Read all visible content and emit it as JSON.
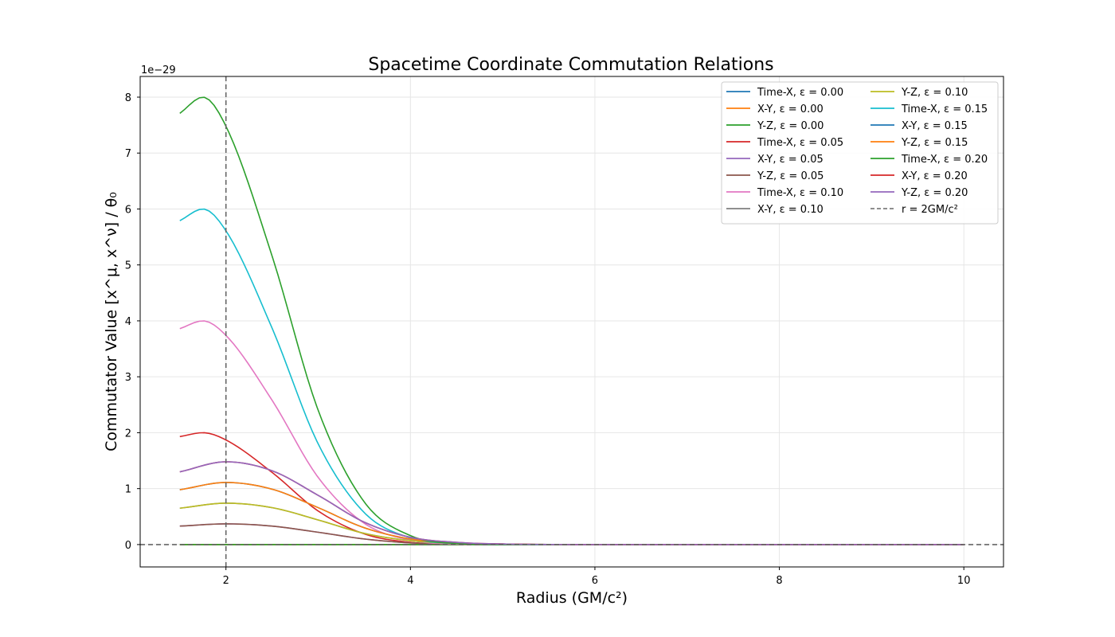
{
  "chart_data": {
    "type": "line",
    "title": "Spacetime Coordinate Commutation Relations",
    "xlabel": "Radius (GM/c²)",
    "ylabel": "Commutator Value [x^μ, x^ν] / θ₀",
    "y_offset_label": "1e−29",
    "xlim": [
      1.07,
      10.43
    ],
    "ylim": [
      -0.4,
      8.37
    ],
    "x_ticks": [
      2,
      4,
      6,
      8,
      10
    ],
    "y_ticks": [
      0,
      1,
      2,
      3,
      4,
      5,
      6,
      7,
      8
    ],
    "grid": true,
    "legend_position": "top-right",
    "legend_columns": 2,
    "x_range": [
      1.5,
      10.0
    ],
    "reference_lines": [
      {
        "orientation": "vertical",
        "value": 2,
        "label": "r = 2GM/c²",
        "color": "#7f7f7f",
        "style": "dashed"
      },
      {
        "orientation": "horizontal",
        "value": 0,
        "color": "#7f7f7f",
        "style": "dashed"
      }
    ],
    "series": [
      {
        "name": "Time-X, ε = 0.00",
        "epsilon": 0.0,
        "component": "Time-X",
        "color": "#1f77b4",
        "x": [
          1.5,
          10.0
        ],
        "y": [
          0,
          0
        ]
      },
      {
        "name": "X-Y, ε = 0.00",
        "epsilon": 0.0,
        "component": "X-Y",
        "color": "#ff7f0e",
        "x": [
          1.5,
          10.0
        ],
        "y": [
          0,
          0
        ]
      },
      {
        "name": "Y-Z, ε = 0.00",
        "epsilon": 0.0,
        "component": "Y-Z",
        "color": "#2ca02c",
        "x": [
          1.5,
          10.0
        ],
        "y": [
          0,
          0
        ]
      },
      {
        "name": "Time-X, ε = 0.05",
        "epsilon": 0.05,
        "component": "Time-X",
        "color": "#d62728",
        "x": [
          1.5,
          1.75,
          2.0,
          2.5,
          3.0,
          3.5,
          4.0,
          4.5,
          5.0,
          6.0,
          8.0,
          10.0
        ],
        "y": [
          1.93,
          2.0,
          1.87,
          1.29,
          0.6,
          0.19,
          0.04,
          0.01,
          0,
          0,
          0,
          0
        ]
      },
      {
        "name": "X-Y, ε = 0.05",
        "epsilon": 0.05,
        "component": "X-Y",
        "color": "#9467bd",
        "x": [
          1.5,
          2.0,
          2.5,
          3.0,
          3.5,
          4.0,
          4.5,
          5.0,
          6.0,
          8.0,
          10.0
        ],
        "y": [
          0.33,
          0.37,
          0.33,
          0.22,
          0.1,
          0.03,
          0.01,
          0,
          0,
          0,
          0
        ]
      },
      {
        "name": "Y-Z, ε = 0.05",
        "epsilon": 0.05,
        "component": "Y-Z",
        "color": "#8c564b",
        "x": [
          1.5,
          2.0,
          2.5,
          3.0,
          3.5,
          4.0,
          4.5,
          5.0,
          6.0,
          8.0,
          10.0
        ],
        "y": [
          0.33,
          0.37,
          0.33,
          0.22,
          0.1,
          0.03,
          0.01,
          0,
          0,
          0,
          0
        ]
      },
      {
        "name": "Time-X, ε = 0.10",
        "epsilon": 0.1,
        "component": "Time-X",
        "color": "#e377c2",
        "x": [
          1.5,
          1.75,
          2.0,
          2.5,
          3.0,
          3.5,
          4.0,
          4.5,
          5.0,
          6.0,
          8.0,
          10.0
        ],
        "y": [
          3.86,
          4.0,
          3.74,
          2.58,
          1.2,
          0.38,
          0.08,
          0.01,
          0,
          0,
          0,
          0
        ]
      },
      {
        "name": "X-Y, ε = 0.10",
        "epsilon": 0.1,
        "component": "X-Y",
        "color": "#7f7f7f",
        "x": [
          1.5,
          2.0,
          2.5,
          3.0,
          3.5,
          4.0,
          4.5,
          5.0,
          6.0,
          8.0,
          10.0
        ],
        "y": [
          0.65,
          0.74,
          0.66,
          0.44,
          0.2,
          0.07,
          0.02,
          0,
          0,
          0,
          0
        ]
      },
      {
        "name": "Y-Z, ε = 0.10",
        "epsilon": 0.1,
        "component": "Y-Z",
        "color": "#bcbd22",
        "x": [
          1.5,
          2.0,
          2.5,
          3.0,
          3.5,
          4.0,
          4.5,
          5.0,
          6.0,
          8.0,
          10.0
        ],
        "y": [
          0.65,
          0.74,
          0.66,
          0.44,
          0.2,
          0.07,
          0.02,
          0,
          0,
          0,
          0
        ]
      },
      {
        "name": "Time-X, ε = 0.15",
        "epsilon": 0.15,
        "component": "Time-X",
        "color": "#17becf",
        "x": [
          1.5,
          1.75,
          2.0,
          2.5,
          3.0,
          3.5,
          4.0,
          4.5,
          5.0,
          6.0,
          8.0,
          10.0
        ],
        "y": [
          5.79,
          6.0,
          5.61,
          3.87,
          1.8,
          0.57,
          0.12,
          0.02,
          0,
          0,
          0,
          0
        ]
      },
      {
        "name": "X-Y, ε = 0.15",
        "epsilon": 0.15,
        "component": "X-Y",
        "color": "#1f77b4",
        "x": [
          1.5,
          2.0,
          2.5,
          3.0,
          3.5,
          4.0,
          4.5,
          5.0,
          6.0,
          8.0,
          10.0
        ],
        "y": [
          0.98,
          1.11,
          0.99,
          0.66,
          0.3,
          0.1,
          0.03,
          0.01,
          0,
          0,
          0
        ]
      },
      {
        "name": "Y-Z, ε = 0.15",
        "epsilon": 0.15,
        "component": "Y-Z",
        "color": "#ff7f0e",
        "x": [
          1.5,
          2.0,
          2.5,
          3.0,
          3.5,
          4.0,
          4.5,
          5.0,
          6.0,
          8.0,
          10.0
        ],
        "y": [
          0.98,
          1.11,
          0.99,
          0.66,
          0.3,
          0.1,
          0.03,
          0.01,
          0,
          0,
          0
        ]
      },
      {
        "name": "Time-X, ε = 0.20",
        "epsilon": 0.2,
        "component": "Time-X",
        "color": "#2ca02c",
        "x": [
          1.5,
          1.75,
          2.0,
          2.5,
          3.0,
          3.5,
          4.0,
          4.5,
          5.0,
          6.0,
          8.0,
          10.0
        ],
        "y": [
          7.71,
          8.0,
          7.48,
          5.16,
          2.4,
          0.76,
          0.16,
          0.02,
          0,
          0,
          0,
          0
        ]
      },
      {
        "name": "X-Y, ε = 0.20",
        "epsilon": 0.2,
        "component": "X-Y",
        "color": "#d62728",
        "x": [
          1.5,
          2.0,
          2.5,
          3.0,
          3.5,
          4.0,
          4.5,
          5.0,
          6.0,
          8.0,
          10.0
        ],
        "y": [
          1.3,
          1.48,
          1.32,
          0.88,
          0.4,
          0.13,
          0.04,
          0.01,
          0,
          0,
          0
        ]
      },
      {
        "name": "Y-Z, ε = 0.20",
        "epsilon": 0.2,
        "component": "Y-Z",
        "color": "#9467bd",
        "x": [
          1.5,
          2.0,
          2.5,
          3.0,
          3.5,
          4.0,
          4.5,
          5.0,
          6.0,
          8.0,
          10.0
        ],
        "y": [
          1.3,
          1.48,
          1.32,
          0.88,
          0.4,
          0.13,
          0.04,
          0.01,
          0,
          0,
          0
        ]
      }
    ]
  }
}
